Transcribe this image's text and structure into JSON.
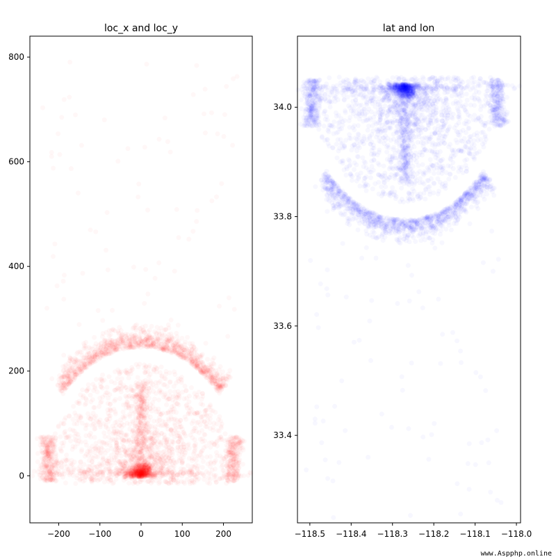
{
  "watermark": "www.Aspphp.online",
  "chart_data": [
    {
      "type": "scatter",
      "title": "loc_x and loc_y",
      "color": "#ff0000",
      "point_alpha": 0.03,
      "xlim": [
        -270,
        270
      ],
      "ylim": [
        -90,
        840
      ],
      "xticks": [
        -200,
        -100,
        0,
        100,
        200
      ],
      "yticks": [
        0,
        200,
        400,
        600,
        800
      ],
      "xtick_labels": [
        "−200",
        "−100",
        "0",
        "100",
        "200"
      ],
      "ytick_labels": [
        "0",
        "200",
        "400",
        "600",
        "800"
      ],
      "grid": false,
      "shape": {
        "description": "basketball shot locations; dense semicircle region with arc at radius ~238, heavy cluster near basket",
        "basket": [
          0,
          0
        ],
        "arc_radius": 238,
        "corner_x": 220,
        "corner_top": 90
      }
    },
    {
      "type": "scatter",
      "title": "lat and lon",
      "color": "#0000ff",
      "point_alpha": 0.03,
      "xlim": [
        -118.53,
        -117.99
      ],
      "ylim": [
        33.24,
        34.13
      ],
      "xticks": [
        -118.5,
        -118.4,
        -118.3,
        -118.2,
        -118.1,
        -118.0
      ],
      "yticks": [
        33.4,
        33.6,
        33.8,
        34.0
      ],
      "xtick_labels": [
        "−118.5",
        "−118.4",
        "−118.3",
        "−118.2",
        "−118.1",
        "−118.0"
      ],
      "ytick_labels": [
        "33.4",
        "33.6",
        "33.8",
        "34.0"
      ],
      "grid": false,
      "shape": {
        "description": "same shots in lat/lon; mirrored vertically, basket at top",
        "basket": [
          -118.27,
          34.04
        ],
        "scale": 0.001
      }
    }
  ]
}
